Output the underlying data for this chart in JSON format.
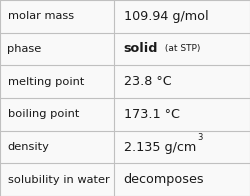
{
  "rows": [
    {
      "label": "molar mass",
      "value_parts": [
        {
          "text": "109.94 g/mol",
          "style": "normal"
        }
      ]
    },
    {
      "label": "phase",
      "value_parts": [
        {
          "text": "solid",
          "style": "bold"
        },
        {
          "text": " (at STP)",
          "style": "small"
        }
      ]
    },
    {
      "label": "melting point",
      "value_parts": [
        {
          "text": "23.8 °C",
          "style": "normal"
        }
      ]
    },
    {
      "label": "boiling point",
      "value_parts": [
        {
          "text": "173.1 °C",
          "style": "normal"
        }
      ]
    },
    {
      "label": "density",
      "value_parts": [
        {
          "text": "2.135 g/cm",
          "style": "normal"
        },
        {
          "text": "3",
          "style": "super"
        }
      ]
    },
    {
      "label": "solubility in water",
      "value_parts": [
        {
          "text": "decomposes",
          "style": "normal"
        }
      ]
    }
  ],
  "col_split": 0.455,
  "bg_color": "#f9f9f9",
  "grid_color": "#c0c0c0",
  "label_color": "#1a1a1a",
  "value_color": "#1a1a1a",
  "label_fontsize": 8.2,
  "value_fontsize": 9.2,
  "small_fontsize": 6.5,
  "super_fontsize": 6.0,
  "fig_width": 2.5,
  "fig_height": 1.96,
  "dpi": 100
}
